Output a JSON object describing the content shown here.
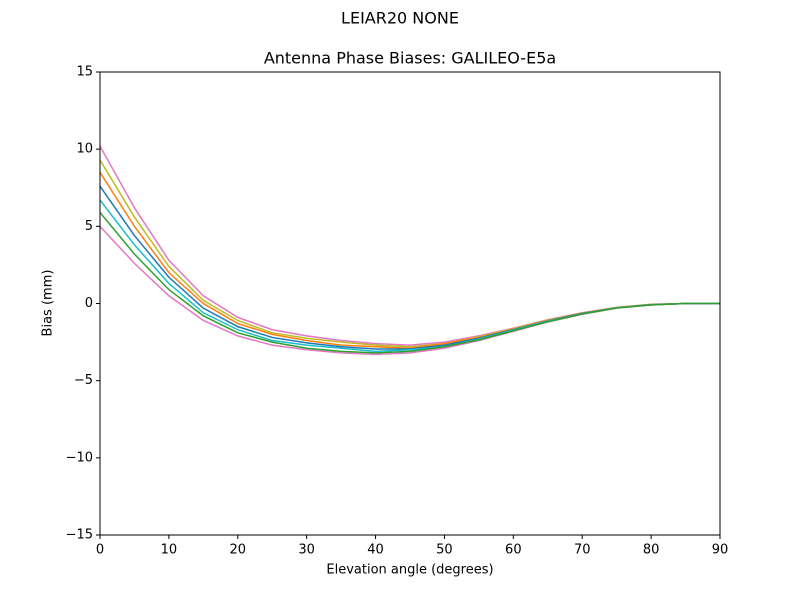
{
  "chart_data": {
    "type": "line",
    "suptitle": "LEIAR20         NONE",
    "title": "Antenna Phase Biases: GALILEO-E5a",
    "x_label": "Elevation angle (degrees)",
    "y_label": "Bias (mm)",
    "x": [
      0,
      5,
      10,
      15,
      20,
      25,
      30,
      35,
      40,
      45,
      50,
      55,
      60,
      65,
      70,
      75,
      80,
      85,
      90
    ],
    "xlim": [
      0,
      90
    ],
    "xticks": [
      0,
      10,
      20,
      30,
      40,
      50,
      60,
      70,
      80,
      90
    ],
    "ylim": [
      -15,
      15
    ],
    "yticks": [
      {
        "value": -15,
        "label": "−15"
      },
      {
        "value": -10,
        "label": "−10"
      },
      {
        "value": -5,
        "label": "−5"
      },
      0,
      5,
      10,
      15
    ],
    "grid": false,
    "series": [
      {
        "color": "#e377c2",
        "values": [
          10.2,
          6.2,
          2.8,
          0.5,
          -0.9,
          -1.7,
          -2.1,
          -2.4,
          -2.6,
          -2.7,
          -2.5,
          -2.1,
          -1.6,
          -1.05,
          -0.6,
          -0.25,
          -0.05,
          0,
          0
        ]
      },
      {
        "color": "#bcbd22",
        "values": [
          9.3,
          5.6,
          2.4,
          0.2,
          -1.1,
          -1.9,
          -2.25,
          -2.5,
          -2.7,
          -2.8,
          -2.6,
          -2.15,
          -1.63,
          -1.08,
          -0.62,
          -0.26,
          -0.06,
          0,
          0
        ]
      },
      {
        "color": "#ff7f0e",
        "values": [
          8.5,
          5.0,
          2.0,
          0,
          -1.3,
          -2.0,
          -2.4,
          -2.7,
          -2.8,
          -2.9,
          -2.6,
          -2.2,
          -1.67,
          -1.1,
          -0.63,
          -0.27,
          -0.07,
          0,
          0
        ]
      },
      {
        "color": "#1f77b4",
        "values": [
          7.6,
          4.4,
          1.7,
          -0.3,
          -1.5,
          -2.2,
          -2.55,
          -2.8,
          -2.95,
          -2.95,
          -2.7,
          -2.25,
          -1.7,
          -1.13,
          -0.65,
          -0.28,
          -0.08,
          0,
          0
        ]
      },
      {
        "color": "#17becf",
        "values": [
          6.7,
          3.8,
          1.3,
          -0.6,
          -1.7,
          -2.4,
          -2.7,
          -2.9,
          -3.1,
          -3.0,
          -2.8,
          -2.3,
          -1.73,
          -1.15,
          -0.67,
          -0.28,
          -0.08,
          0,
          0
        ]
      },
      {
        "color": "#e377c2",
        "values": [
          5.0,
          2.6,
          0.5,
          -1.1,
          -2.1,
          -2.7,
          -3.0,
          -3.2,
          -3.3,
          -3.2,
          -2.9,
          -2.4,
          -1.8,
          -1.2,
          -0.7,
          -0.3,
          -0.1,
          0,
          0
        ]
      },
      {
        "color": "#2ca02c",
        "values": [
          5.9,
          3.2,
          0.9,
          -0.8,
          -1.9,
          -2.5,
          -2.9,
          -3.1,
          -3.2,
          -3.1,
          -2.8,
          -2.35,
          -1.77,
          -1.18,
          -0.68,
          -0.29,
          -0.09,
          0,
          0
        ]
      }
    ]
  }
}
